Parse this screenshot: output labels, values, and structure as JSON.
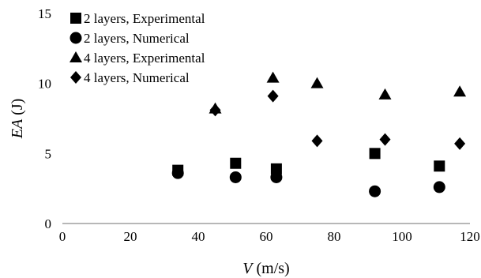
{
  "chart_data": {
    "type": "scatter",
    "xlabel": {
      "symbol": "V",
      "unit": "(m/s)"
    },
    "ylabel": {
      "symbol": "EA",
      "unit": "(J)"
    },
    "xlim": [
      0,
      120
    ],
    "ylim": [
      0,
      15
    ],
    "x_ticks": [
      "0",
      "20",
      "40",
      "60",
      "80",
      "100",
      "120"
    ],
    "y_ticks": [
      "0",
      "5",
      "10",
      "15"
    ],
    "grid": false,
    "legend_position": "top-left",
    "series": [
      {
        "name": "2 layers, Experimental",
        "marker": "square",
        "points": [
          [
            34,
            3.8
          ],
          [
            51,
            4.3
          ],
          [
            63,
            3.9
          ],
          [
            92,
            5.0
          ],
          [
            111,
            4.1
          ]
        ]
      },
      {
        "name": "2 layers, Numerical",
        "marker": "circle",
        "points": [
          [
            34,
            3.6
          ],
          [
            51,
            3.3
          ],
          [
            63,
            3.3
          ],
          [
            92,
            2.3
          ],
          [
            111,
            2.6
          ]
        ]
      },
      {
        "name": "4 layers, Experimental",
        "marker": "triangle",
        "points": [
          [
            45,
            8.2
          ],
          [
            62,
            10.4
          ],
          [
            75,
            10.0
          ],
          [
            95,
            9.2
          ],
          [
            117,
            9.4
          ]
        ]
      },
      {
        "name": "4 layers, Numerical",
        "marker": "diamond",
        "points": [
          [
            45,
            8.1
          ],
          [
            62,
            9.1
          ],
          [
            75,
            5.9
          ],
          [
            95,
            6.0
          ],
          [
            117,
            5.7
          ]
        ]
      }
    ]
  }
}
